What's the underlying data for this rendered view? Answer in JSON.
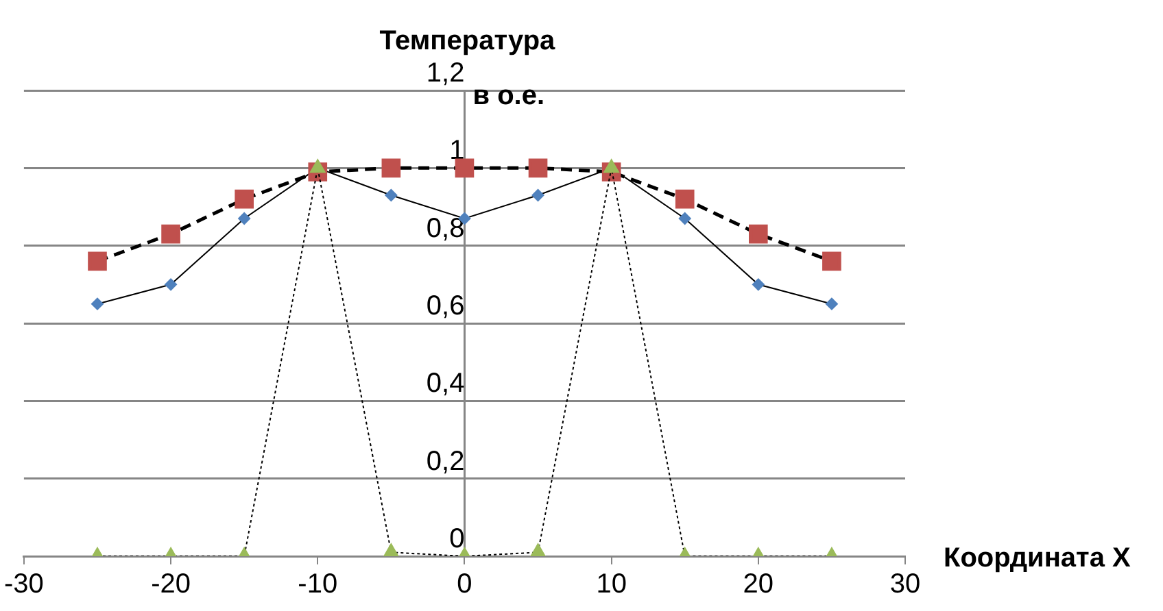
{
  "chart_data": {
    "type": "line",
    "ylabel": "Температура в о.е.",
    "xlabel": "Координата X",
    "x": [
      -25,
      -20,
      -15,
      -10,
      -5,
      0,
      5,
      10,
      15,
      20,
      25
    ],
    "series": [
      {
        "color": "#4f81bd",
        "marker": "diamond",
        "line_style": "solid",
        "values": [
          0.65,
          0.7,
          0.87,
          1.0,
          0.93,
          0.87,
          0.93,
          1.0,
          0.87,
          0.7,
          0.65
        ]
      },
      {
        "color": "#c0504d",
        "marker": "square",
        "line_style": "dashed",
        "values": [
          0.76,
          0.83,
          0.92,
          0.99,
          1.0,
          1.0,
          1.0,
          0.99,
          0.92,
          0.83,
          0.76
        ]
      },
      {
        "color": "#9bbb59",
        "marker": "triangle",
        "line_style": "dotted",
        "values": [
          0,
          0,
          0,
          1.0,
          0.01,
          0,
          0.01,
          1.0,
          0,
          0,
          0
        ]
      }
    ],
    "xlim": [
      -30,
      30
    ],
    "xticks": [
      -30,
      -20,
      -10,
      0,
      10,
      20,
      30
    ],
    "ylim": [
      0,
      1.2
    ],
    "yticks": [
      0,
      {
        "value": 0.2,
        "label": "0,2"
      },
      {
        "value": 0.4,
        "label": "0,4"
      },
      {
        "value": 0.6,
        "label": "0,6"
      },
      {
        "value": 0.8,
        "label": "0,8"
      },
      1,
      {
        "value": 1.2,
        "label": "1,2"
      }
    ],
    "grid": "y",
    "legend": false
  }
}
